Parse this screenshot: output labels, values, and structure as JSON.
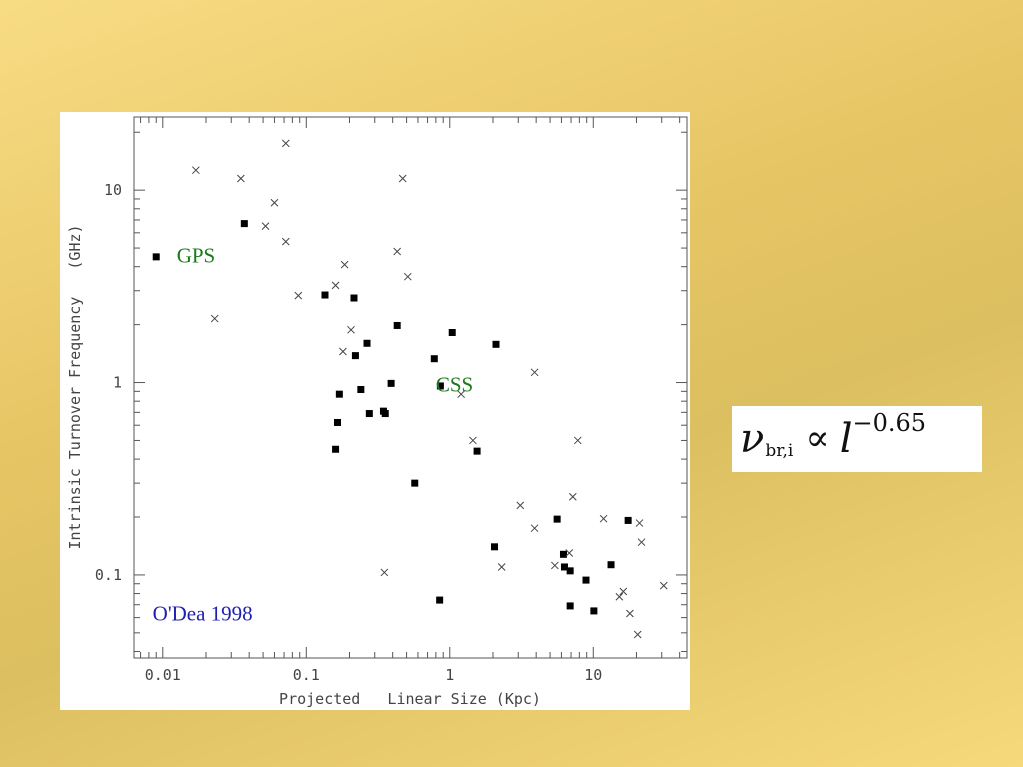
{
  "chart_data": {
    "type": "scatter",
    "xscale": "log",
    "yscale": "log",
    "xlim": [
      0.0063,
      45
    ],
    "ylim": [
      0.037,
      24
    ],
    "xlabel": "Projected   Linear Size (Kpc)",
    "ylabel": "Intrinsic Turnover Frequency   (GHz)",
    "xticks": [
      {
        "value": 0.01,
        "label": "0.01"
      },
      {
        "value": 0.1,
        "label": "0.1"
      },
      {
        "value": 1,
        "label": "1"
      },
      {
        "value": 10,
        "label": "10"
      }
    ],
    "yticks": [
      {
        "value": 0.1,
        "label": "0.1"
      },
      {
        "value": 1,
        "label": "1"
      },
      {
        "value": 10,
        "label": "10"
      }
    ],
    "annotations": [
      {
        "text": "GPS",
        "x": 0.0125,
        "y": 4.2,
        "color": "#1a7a1a"
      },
      {
        "text": "CSS",
        "x": 0.8,
        "y": 0.9,
        "color": "#1a7a1a"
      },
      {
        "text": "O'Dea 1998",
        "x": 0.0085,
        "y": 0.058,
        "color": "#1f1fb0"
      }
    ],
    "series": [
      {
        "marker": "square",
        "points": [
          [
            0.009,
            4.5
          ],
          [
            0.037,
            6.7
          ],
          [
            0.135,
            2.85
          ],
          [
            0.215,
            2.75
          ],
          [
            0.22,
            1.38
          ],
          [
            0.265,
            1.6
          ],
          [
            0.24,
            0.92
          ],
          [
            0.17,
            0.87
          ],
          [
            0.165,
            0.62
          ],
          [
            0.275,
            0.69
          ],
          [
            0.345,
            0.71
          ],
          [
            0.355,
            0.69
          ],
          [
            0.39,
            0.99
          ],
          [
            0.43,
            1.98
          ],
          [
            0.78,
            1.33
          ],
          [
            0.86,
            0.96
          ],
          [
            1.04,
            1.82
          ],
          [
            0.16,
            0.45
          ],
          [
            0.57,
            0.3
          ],
          [
            1.55,
            0.44
          ],
          [
            2.1,
            1.58
          ],
          [
            0.85,
            0.074
          ],
          [
            2.05,
            0.14
          ],
          [
            5.6,
            0.195
          ],
          [
            6.2,
            0.128
          ],
          [
            6.3,
            0.11
          ],
          [
            6.9,
            0.105
          ],
          [
            6.9,
            0.069
          ],
          [
            8.9,
            0.094
          ],
          [
            10.1,
            0.065
          ],
          [
            13.3,
            0.113
          ],
          [
            17.5,
            0.192
          ]
        ]
      },
      {
        "marker": "cross",
        "points": [
          [
            0.017,
            12.7
          ],
          [
            0.035,
            11.5
          ],
          [
            0.072,
            17.5
          ],
          [
            0.06,
            8.6
          ],
          [
            0.052,
            6.5
          ],
          [
            0.072,
            5.4
          ],
          [
            0.47,
            11.5
          ],
          [
            0.43,
            4.8
          ],
          [
            0.185,
            4.1
          ],
          [
            0.51,
            3.55
          ],
          [
            0.16,
            3.2
          ],
          [
            0.088,
            2.83
          ],
          [
            0.023,
            2.15
          ],
          [
            0.205,
            1.88
          ],
          [
            0.18,
            1.45
          ],
          [
            1.2,
            0.87
          ],
          [
            3.9,
            1.13
          ],
          [
            1.45,
            0.5
          ],
          [
            7.8,
            0.5
          ],
          [
            0.35,
            0.103
          ],
          [
            3.1,
            0.23
          ],
          [
            3.9,
            0.175
          ],
          [
            7.2,
            0.255
          ],
          [
            2.3,
            0.11
          ],
          [
            6.8,
            0.13
          ],
          [
            5.4,
            0.112
          ],
          [
            11.8,
            0.196
          ],
          [
            15.2,
            0.077
          ],
          [
            16.2,
            0.082
          ],
          [
            18,
            0.063
          ],
          [
            21,
            0.186
          ],
          [
            21.7,
            0.148
          ],
          [
            20.4,
            0.049
          ],
          [
            31,
            0.088
          ]
        ]
      }
    ]
  },
  "formula": {
    "symbol": "ν",
    "subscript": "br,i",
    "relation": "∝",
    "variable": "l",
    "exponent": "−0.65"
  }
}
